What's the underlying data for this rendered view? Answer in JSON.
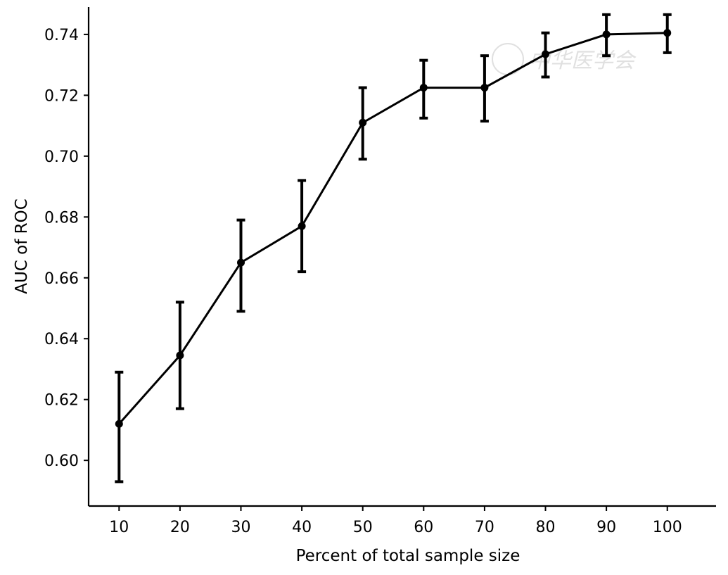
{
  "chart_data": {
    "type": "line",
    "title": "",
    "xlabel": "Percent of total sample size",
    "ylabel": "AUC of ROC",
    "x": [
      10,
      20,
      30,
      40,
      50,
      60,
      70,
      80,
      90,
      100
    ],
    "xticks": [
      "10",
      "20",
      "30",
      "40",
      "50",
      "60",
      "70",
      "80",
      "90",
      "100"
    ],
    "yticks": [
      "0.60",
      "0.62",
      "0.64",
      "0.66",
      "0.68",
      "0.70",
      "0.72",
      "0.74"
    ],
    "xlim": [
      5,
      108
    ],
    "ylim": [
      0.585,
      0.749
    ],
    "grid": false,
    "legend": "none",
    "series": [
      {
        "values": [
          0.612,
          0.6345,
          0.665,
          0.677,
          0.711,
          0.7225,
          0.7225,
          0.7335,
          0.74,
          0.7405
        ],
        "error_low": [
          0.593,
          0.617,
          0.649,
          0.662,
          0.699,
          0.7125,
          0.7115,
          0.726,
          0.733,
          0.734
        ],
        "error_high": [
          0.629,
          0.652,
          0.679,
          0.692,
          0.7225,
          0.7315,
          0.733,
          0.7405,
          0.7465,
          0.7465
        ],
        "color": "#000000",
        "marker": "circle"
      }
    ]
  },
  "watermark": {
    "text": "中华医学会"
  }
}
